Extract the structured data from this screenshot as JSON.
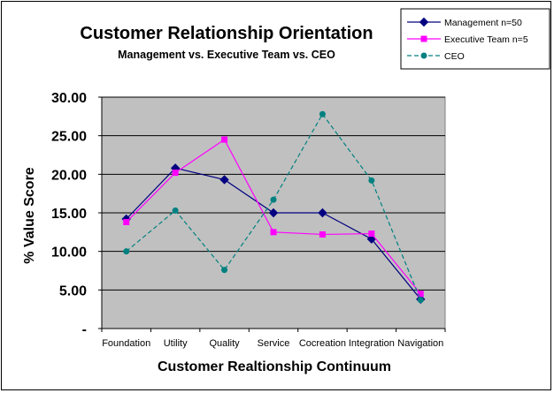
{
  "chart_data": {
    "type": "line",
    "title": "Customer Relationship Orientation",
    "subtitle": "Management vs. Executive Team vs. CEO",
    "xlabel": "Customer Realtionship Continuum",
    "ylabel": "% Value Score",
    "categories": [
      "Foundation",
      "Utility",
      "Quality",
      "Service",
      "Cocreation",
      "Integration",
      "Navigation"
    ],
    "ylim": [
      0,
      30
    ],
    "yticks": [
      0,
      5,
      10,
      15,
      20,
      25,
      30
    ],
    "ytick_labels": [
      "-",
      "5.00",
      "10.00",
      "15.00",
      "20.00",
      "25.00",
      "30.00"
    ],
    "grid": true,
    "plot_background": "#c0c0c0",
    "legend_position": "top-right",
    "series": [
      {
        "name": "Management n=50",
        "values": [
          14.2,
          20.8,
          19.3,
          15.0,
          15.0,
          11.6,
          3.8
        ],
        "color": "#000080",
        "marker": "diamond",
        "dash": "solid"
      },
      {
        "name": "Executive Team n=5",
        "values": [
          13.8,
          20.2,
          24.5,
          12.5,
          12.2,
          12.3,
          4.5
        ],
        "color": "#ff00ff",
        "marker": "square",
        "dash": "solid"
      },
      {
        "name": "CEO",
        "values": [
          10.0,
          15.3,
          7.6,
          16.7,
          27.8,
          19.2,
          3.7
        ],
        "color": "#008080",
        "marker": "circle",
        "dash": "dashed"
      }
    ]
  }
}
